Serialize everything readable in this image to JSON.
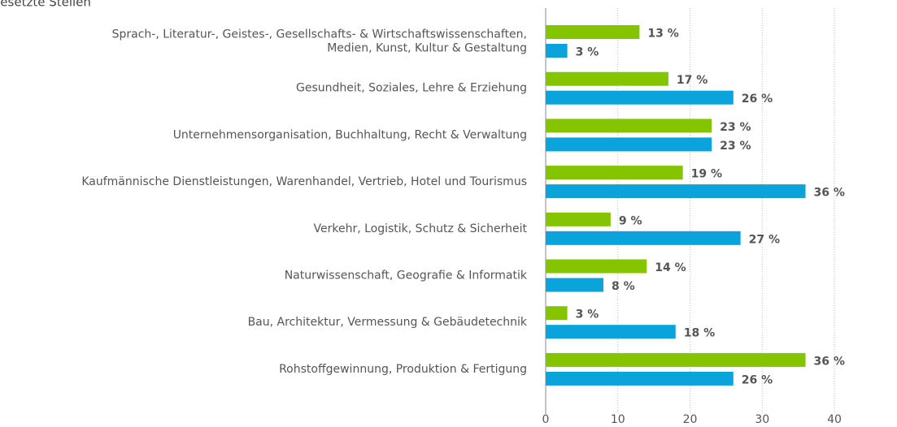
{
  "chart_data": {
    "type": "bar",
    "orientation": "horizontal",
    "categories": [
      [
        "Sprach-, Literatur-, Geistes-, Gesellschafts- & Wirtschaftswissenschaften,",
        "Medien, Kunst, Kultur & Gestaltung"
      ],
      [
        "Gesundheit, Soziales, Lehre & Erziehung"
      ],
      [
        "Unternehmensorganisation, Buchhaltung, Recht & Verwaltung"
      ],
      [
        "Kaufmännische Dienstleistungen, Warenhandel, Vertrieb, Hotel und Tourismus"
      ],
      [
        "Verkehr, Logistik, Schutz & Sicherheit"
      ],
      [
        "Naturwissenschaft, Geografie & Informatik"
      ],
      [
        "Bau, Architektur, Vermessung & Gebäudetechnik"
      ],
      [
        "Rohstoffgewinnung, Produktion & Fertigung"
      ]
    ],
    "series": [
      {
        "color": "#84c400",
        "values": [
          13,
          17,
          23,
          19,
          9,
          14,
          3,
          36
        ],
        "value_labels": [
          "13 %",
          "17 %",
          "23 %",
          "19 %",
          "9 %",
          "14 %",
          "3 %",
          "36 %"
        ]
      },
      {
        "name": "Besetzte Stellen",
        "color": "#0aa3dc",
        "values": [
          3,
          26,
          23,
          36,
          27,
          8,
          18,
          26
        ],
        "value_labels": [
          "3 %",
          "26 %",
          "23 %",
          "36 %",
          "27 %",
          "8 %",
          "18 %",
          "26 %"
        ]
      }
    ],
    "xlim": [
      0,
      48
    ],
    "xticks": [
      0,
      10,
      20,
      30,
      40
    ],
    "grid": true
  }
}
